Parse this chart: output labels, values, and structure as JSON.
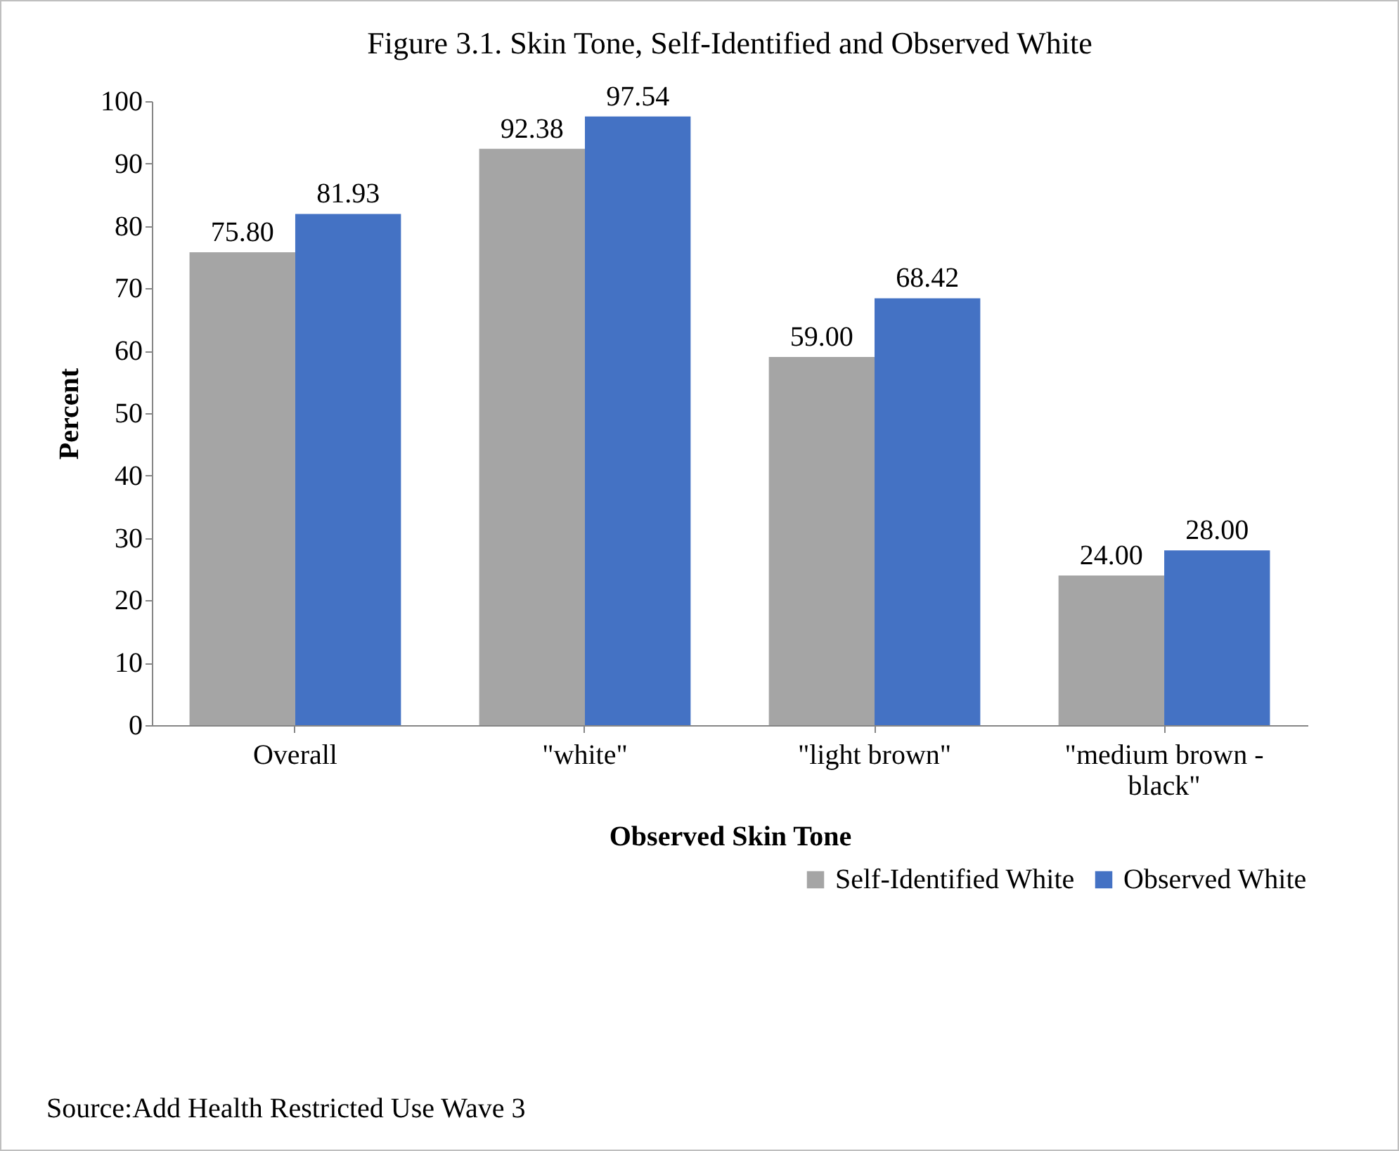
{
  "chart_data": {
    "type": "bar",
    "title": "Figure 3.1. Skin Tone, Self-Identified and Observed White",
    "xlabel": "Observed Skin Tone",
    "ylabel": "Percent",
    "categories": [
      "Overall",
      "\"white\"",
      "\"light brown\"",
      "\"medium brown - black\""
    ],
    "series": [
      {
        "name": "Self-Identified White",
        "color": "#a5a5a5",
        "values": [
          75.8,
          92.38,
          59.0,
          24.0
        ],
        "value_labels": [
          "75.80",
          "92.38",
          "59.00",
          "24.00"
        ]
      },
      {
        "name": "Observed White",
        "color": "#4472c4",
        "values": [
          81.93,
          97.54,
          68.42,
          28.0
        ],
        "value_labels": [
          "81.93",
          "97.54",
          "68.42",
          "28.00"
        ]
      }
    ],
    "ylim": [
      0,
      100
    ],
    "yticks": [
      0,
      10,
      20,
      30,
      40,
      50,
      60,
      70,
      80,
      90,
      100
    ],
    "grid": false,
    "legend": "bottom right",
    "annotations": [
      "Source:Add Health Restricted Use Wave 3"
    ]
  }
}
